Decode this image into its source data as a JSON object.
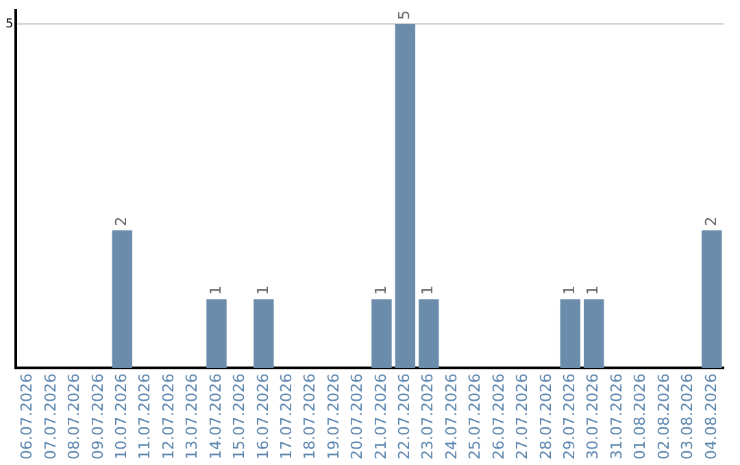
{
  "chart_data": {
    "type": "bar",
    "categories": [
      "06.07.2026",
      "07.07.2026",
      "08.07.2026",
      "09.07.2026",
      "10.07.2026",
      "11.07.2026",
      "12.07.2026",
      "13.07.2026",
      "14.07.2026",
      "15.07.2026",
      "16.07.2026",
      "17.07.2026",
      "18.07.2026",
      "19.07.2026",
      "20.07.2026",
      "21.07.2026",
      "22.07.2026",
      "23.07.2026",
      "24.07.2026",
      "25.07.2026",
      "26.07.2026",
      "27.07.2026",
      "28.07.2026",
      "29.07.2026",
      "30.07.2026",
      "31.07.2026",
      "01.08.2026",
      "02.08.2026",
      "03.08.2026",
      "04.08.2026"
    ],
    "values": [
      null,
      null,
      null,
      null,
      2,
      null,
      null,
      null,
      1,
      null,
      1,
      null,
      null,
      null,
      null,
      1,
      5,
      1,
      null,
      null,
      null,
      null,
      null,
      1,
      1,
      null,
      null,
      null,
      null,
      2
    ],
    "color": "#6b8cab",
    "ylim": [
      0,
      5.2
    ],
    "yticks": [
      5
    ],
    "grid": "y",
    "data_labels": true,
    "legend": false
  }
}
